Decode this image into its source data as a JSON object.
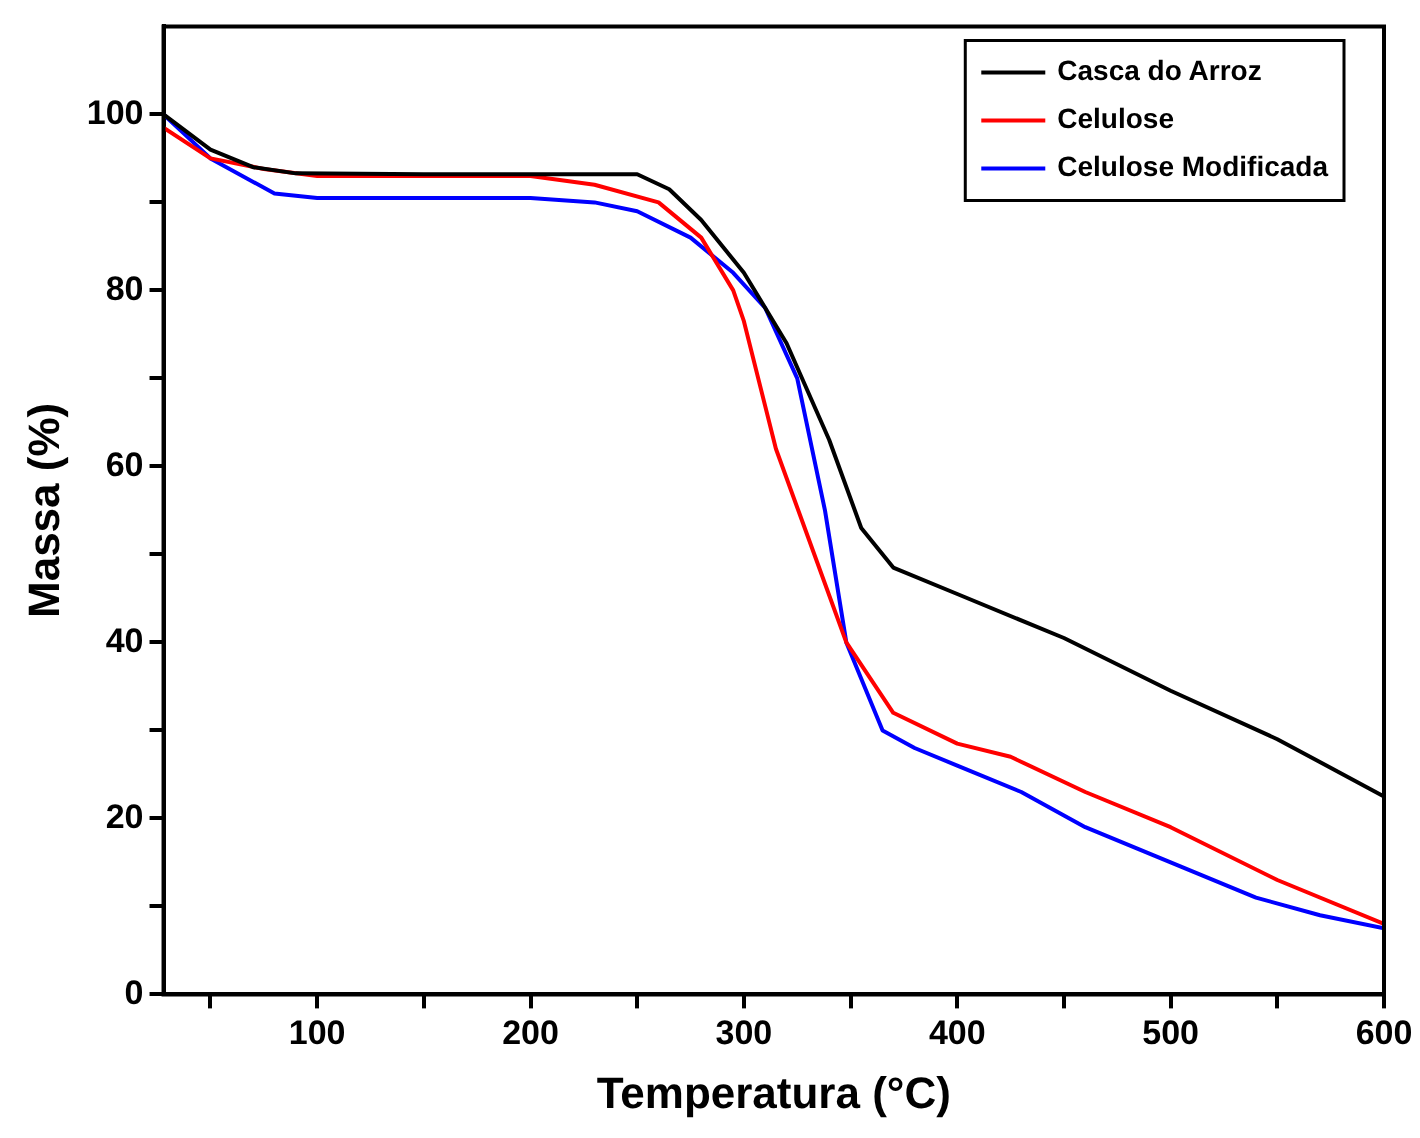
{
  "chart_data": {
    "type": "line",
    "xlabel": "Temperatura (°C)",
    "ylabel": "Massa (%)",
    "xlim": [
      28,
      600
    ],
    "ylim": [
      0,
      110
    ],
    "xticks": [
      {
        "value": 50,
        "label": null
      },
      100,
      {
        "value": 150,
        "label": null
      },
      200,
      {
        "value": 250,
        "label": null
      },
      300,
      {
        "value": 350,
        "label": null
      },
      400,
      {
        "value": 450,
        "label": null
      },
      500,
      {
        "value": 550,
        "label": null
      },
      600
    ],
    "yticks": [
      0,
      {
        "value": 10,
        "label": null
      },
      20,
      {
        "value": 30,
        "label": null
      },
      40,
      {
        "value": 50,
        "label": null
      },
      60,
      {
        "value": 70,
        "label": null
      },
      80,
      {
        "value": 90,
        "label": null
      },
      100
    ],
    "grid": false,
    "legend": "top right",
    "marker": "none",
    "line_style": "solid",
    "series": [
      {
        "name": "Casca do Arroz",
        "color": "#000000",
        "x": [
          28,
          50,
          70,
          90,
          150,
          200,
          250,
          265,
          280,
          300,
          320,
          340,
          355,
          370,
          400,
          450,
          500,
          550,
          600
        ],
        "values": [
          100,
          96,
          94,
          93.3,
          93.2,
          93.2,
          93.2,
          91.5,
          88,
          82,
          74,
          63,
          53,
          48.5,
          45.5,
          40.5,
          34.5,
          29,
          22.5
        ]
      },
      {
        "name": "Celulose",
        "color": "#ff0000",
        "x": [
          28,
          50,
          75,
          100,
          150,
          200,
          230,
          260,
          280,
          295,
          300,
          315,
          330,
          348,
          370,
          400,
          425,
          460,
          500,
          550,
          600
        ],
        "values": [
          98.5,
          95,
          93.8,
          93,
          93,
          93,
          92,
          90,
          86,
          80,
          76.5,
          62,
          52,
          40,
          32,
          28.5,
          27,
          23,
          19,
          13,
          8
        ]
      },
      {
        "name": "Celulose Modificada",
        "color": "#0000ff",
        "x": [
          28,
          50,
          80,
          100,
          150,
          200,
          230,
          250,
          275,
          295,
          310,
          325,
          338,
          348,
          365,
          380,
          400,
          430,
          460,
          500,
          540,
          570,
          600
        ],
        "values": [
          100,
          95,
          91,
          90.5,
          90.5,
          90.5,
          90,
          89,
          86,
          82,
          78,
          70,
          55,
          40,
          30,
          28,
          26,
          23,
          19,
          15,
          11,
          9,
          7.5
        ]
      }
    ]
  }
}
